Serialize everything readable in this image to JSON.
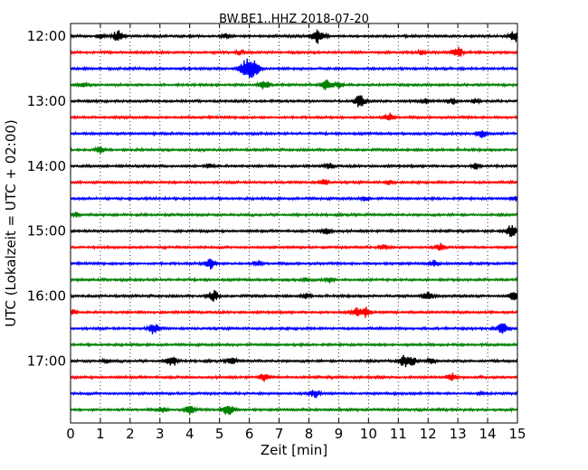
{
  "chart_data": {
    "type": "line",
    "title": "BW.BE1..HHZ 2018-07-20",
    "xlabel": "Zeit  [min]",
    "ylabel": "UTC (Lokalzeit = UTC + 02:00)",
    "xlim": [
      0,
      15
    ],
    "x_ticks": [
      "0",
      "1",
      "2",
      "3",
      "4",
      "5",
      "6",
      "7",
      "8",
      "9",
      "10",
      "11",
      "12",
      "13",
      "14",
      "15"
    ],
    "y_ticks": [
      "12:00",
      "13:00",
      "14:00",
      "15:00",
      "16:00",
      "17:00"
    ],
    "grid": "vertical dotted",
    "trace_colors": [
      "#000000",
      "#ff0000",
      "#0000ff",
      "#008000"
    ],
    "traces_start": "12:00",
    "trace_interval_min": 15,
    "traces": [
      {
        "start": "12:00",
        "color": "#000000",
        "events": [
          [
            1.0,
            0.25
          ],
          [
            1.6,
            0.6
          ],
          [
            5.2,
            0.25
          ],
          [
            8.3,
            0.75
          ],
          [
            14.9,
            0.6
          ]
        ]
      },
      {
        "start": "12:15",
        "color": "#ff0000",
        "events": [
          [
            5.7,
            0.3
          ],
          [
            11.8,
            0.25
          ],
          [
            13.0,
            0.6
          ]
        ]
      },
      {
        "start": "12:30",
        "color": "#0000ff",
        "events": [
          [
            5.9,
            1.0
          ],
          [
            6.2,
            0.6
          ]
        ]
      },
      {
        "start": "12:45",
        "color": "#008000",
        "events": [
          [
            0.4,
            0.25
          ],
          [
            6.5,
            0.5
          ],
          [
            8.6,
            0.65
          ],
          [
            9.0,
            0.3
          ]
        ]
      },
      {
        "start": "13:00",
        "color": "#000000",
        "events": [
          [
            9.7,
            0.65
          ],
          [
            11.9,
            0.25
          ],
          [
            12.8,
            0.3
          ],
          [
            13.6,
            0.25
          ]
        ]
      },
      {
        "start": "13:15",
        "color": "#ff0000",
        "events": [
          [
            10.7,
            0.45
          ]
        ]
      },
      {
        "start": "13:30",
        "color": "#0000ff",
        "events": [
          [
            13.8,
            0.5
          ]
        ]
      },
      {
        "start": "13:45",
        "color": "#008000",
        "events": [
          [
            1.0,
            0.4
          ]
        ]
      },
      {
        "start": "14:00",
        "color": "#000000",
        "events": [
          [
            4.7,
            0.3
          ],
          [
            8.7,
            0.3
          ],
          [
            13.6,
            0.3
          ]
        ]
      },
      {
        "start": "14:15",
        "color": "#ff0000",
        "events": [
          [
            8.5,
            0.35
          ],
          [
            10.7,
            0.25
          ]
        ]
      },
      {
        "start": "14:30",
        "color": "#0000ff",
        "events": [
          [
            9.9,
            0.25
          ],
          [
            14.9,
            0.25
          ]
        ]
      },
      {
        "start": "14:45",
        "color": "#008000",
        "events": [
          [
            0.2,
            0.3
          ]
        ]
      },
      {
        "start": "15:00",
        "color": "#000000",
        "events": [
          [
            8.6,
            0.45
          ],
          [
            14.8,
            0.6
          ]
        ]
      },
      {
        "start": "15:15",
        "color": "#ff0000",
        "events": [
          [
            10.5,
            0.3
          ],
          [
            12.4,
            0.35
          ]
        ]
      },
      {
        "start": "15:30",
        "color": "#0000ff",
        "events": [
          [
            4.7,
            0.55
          ],
          [
            6.3,
            0.3
          ],
          [
            12.2,
            0.3
          ]
        ]
      },
      {
        "start": "15:45",
        "color": "#008000",
        "events": [
          [
            7.9,
            0.2
          ],
          [
            8.7,
            0.25
          ]
        ]
      },
      {
        "start": "16:00",
        "color": "#000000",
        "events": [
          [
            4.8,
            0.6
          ],
          [
            7.9,
            0.3
          ],
          [
            12.0,
            0.5
          ],
          [
            14.9,
            0.55
          ]
        ]
      },
      {
        "start": "16:15",
        "color": "#ff0000",
        "events": [
          [
            0.1,
            0.25
          ],
          [
            9.6,
            0.45
          ],
          [
            9.9,
            0.5
          ]
        ]
      },
      {
        "start": "16:30",
        "color": "#0000ff",
        "events": [
          [
            2.8,
            0.6
          ],
          [
            14.5,
            0.6
          ]
        ]
      },
      {
        "start": "16:45",
        "color": "#008000",
        "events": []
      },
      {
        "start": "17:00",
        "color": "#000000",
        "events": [
          [
            1.2,
            0.25
          ],
          [
            3.4,
            0.55
          ],
          [
            5.4,
            0.4
          ],
          [
            11.2,
            0.6
          ],
          [
            11.5,
            0.4
          ],
          [
            12.1,
            0.35
          ]
        ]
      },
      {
        "start": "17:15",
        "color": "#ff0000",
        "events": [
          [
            6.5,
            0.4
          ],
          [
            12.8,
            0.45
          ]
        ]
      },
      {
        "start": "17:30",
        "color": "#0000ff",
        "events": [
          [
            8.2,
            0.45
          ],
          [
            13.8,
            0.2
          ]
        ]
      },
      {
        "start": "17:45",
        "color": "#008000",
        "events": [
          [
            3.1,
            0.3
          ],
          [
            4.0,
            0.5
          ],
          [
            5.3,
            0.7
          ]
        ]
      }
    ]
  }
}
